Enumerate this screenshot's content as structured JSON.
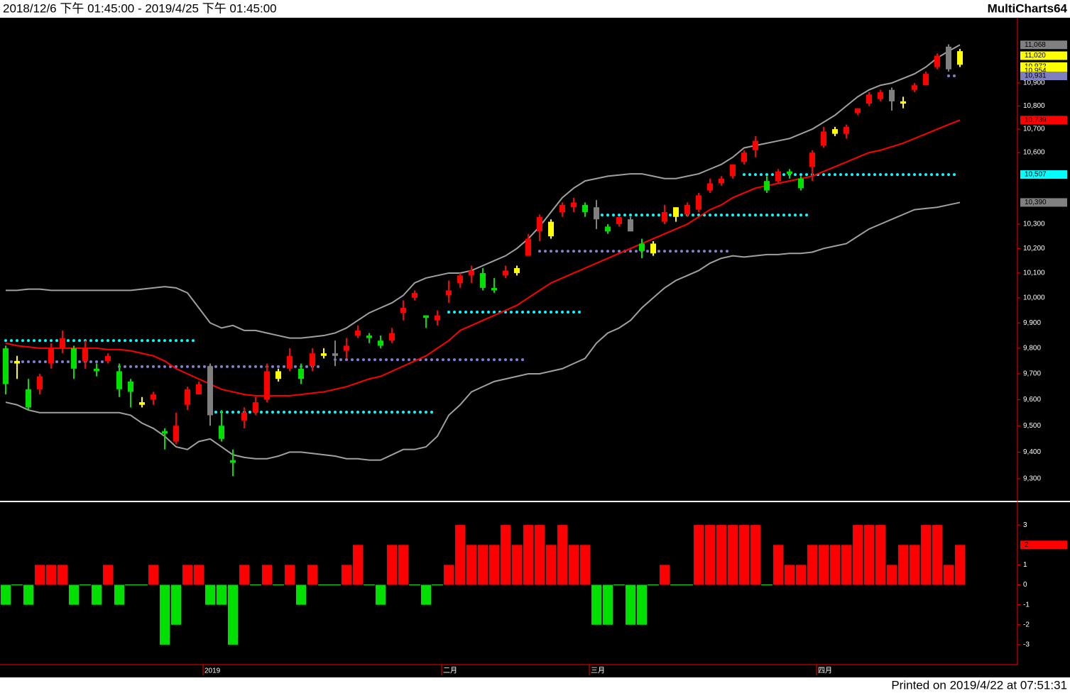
{
  "header": {
    "range": "2018/12/6 下午 01:45:00 - 2019/4/25 下午 01:45:00",
    "app": "MultiCharts64"
  },
  "footer": "Printed on 2019/4/22 at 07:51:31",
  "chart_data": [
    {
      "type": "candlestick",
      "log": true,
      "ylim": [
        9221,
        11189
      ],
      "yticks": [
        {
          "value": 9300,
          "label": "9,300"
        },
        {
          "value": 9400,
          "label": "9,400"
        },
        {
          "value": 9500,
          "label": "9,500"
        },
        {
          "value": 9600,
          "label": "9,600"
        },
        {
          "value": 9700,
          "label": "9,700"
        },
        {
          "value": 9800,
          "label": "9,800"
        },
        {
          "value": 9900,
          "label": "9,900"
        },
        {
          "value": 10000,
          "label": "10,000"
        },
        {
          "value": 10100,
          "label": "10,100"
        },
        {
          "value": 10200,
          "label": "10,200"
        },
        {
          "value": 10300,
          "label": "10,300"
        },
        {
          "value": 10600,
          "label": "10,600"
        },
        {
          "value": 10700,
          "label": "10,700"
        },
        {
          "value": 10800,
          "label": "10,800"
        },
        {
          "value": 10900,
          "label": "10,900"
        }
      ],
      "open": [
        9800,
        9740,
        9640,
        9640,
        9740,
        9800,
        9800,
        9750,
        9720,
        9750,
        9710,
        9670,
        9580,
        9600,
        9480,
        9440,
        9580,
        9620,
        9730,
        9500,
        9370,
        9520,
        9550,
        9600,
        9680,
        9720,
        9720,
        9730,
        9770,
        9780,
        9790,
        9850,
        9850,
        9830,
        9830,
        9940,
        10000,
        9930,
        9910,
        10010,
        10060,
        10090,
        10100,
        10040,
        10090,
        10100,
        10170,
        10270,
        10250,
        10350,
        10370,
        10380,
        10370,
        10290,
        10300,
        10320,
        10220,
        10180,
        10310,
        10330,
        10340,
        10360,
        10440,
        10470,
        10500,
        10560,
        10610,
        10480,
        10480,
        10520,
        10490,
        10540,
        10630,
        10680,
        10680,
        10770,
        10810,
        10830,
        10870,
        10810,
        10870,
        10890,
        10970,
        11060,
        10980
      ],
      "high": [
        9810,
        9770,
        9680,
        9700,
        9820,
        9870,
        9810,
        9830,
        9740,
        9780,
        9740,
        9680,
        9610,
        9630,
        9490,
        9550,
        9650,
        9670,
        9740,
        9560,
        9410,
        9570,
        9610,
        9740,
        9720,
        9800,
        9740,
        9800,
        9800,
        9830,
        9840,
        9890,
        9860,
        9850,
        9880,
        9990,
        10030,
        9930,
        9950,
        10070,
        10100,
        10130,
        10120,
        10080,
        10130,
        10130,
        10260,
        10340,
        10320,
        10390,
        10410,
        10390,
        10400,
        10300,
        10330,
        10330,
        10240,
        10230,
        10380,
        10370,
        10390,
        10430,
        10490,
        10500,
        10550,
        10610,
        10670,
        10500,
        10530,
        10530,
        10500,
        10610,
        10710,
        10710,
        10720,
        10790,
        10860,
        10870,
        10880,
        10840,
        10900,
        10950,
        11030,
        11070,
        11050
      ],
      "low": [
        9620,
        9680,
        9560,
        9620,
        9720,
        9780,
        9680,
        9720,
        9690,
        9740,
        9610,
        9570,
        9570,
        9580,
        9410,
        9430,
        9560,
        9620,
        9500,
        9440,
        9310,
        9490,
        9540,
        9590,
        9670,
        9710,
        9660,
        9710,
        9760,
        9730,
        9760,
        9840,
        9820,
        9800,
        9820,
        9910,
        9990,
        9880,
        9890,
        9980,
        10040,
        10060,
        10030,
        10020,
        10080,
        10090,
        10170,
        10230,
        10240,
        10330,
        10350,
        10330,
        10280,
        10260,
        10290,
        10270,
        10160,
        10170,
        10300,
        10310,
        10330,
        10350,
        10430,
        10460,
        10490,
        10550,
        10580,
        10430,
        10470,
        10490,
        10440,
        10480,
        10620,
        10670,
        10660,
        10760,
        10800,
        10820,
        10780,
        10790,
        10860,
        10890,
        10960,
        10950,
        10970
      ],
      "close": [
        9660,
        9750,
        9570,
        9690,
        9800,
        9840,
        9720,
        9800,
        9710,
        9770,
        9640,
        9630,
        9590,
        9620,
        9470,
        9500,
        9640,
        9660,
        9540,
        9450,
        9360,
        9550,
        9590,
        9710,
        9710,
        9770,
        9680,
        9780,
        9780,
        9770,
        9810,
        9870,
        9840,
        9810,
        9860,
        9960,
        10020,
        9920,
        9930,
        10030,
        10090,
        10110,
        10040,
        10030,
        10110,
        10120,
        10240,
        10330,
        10310,
        10380,
        10390,
        10350,
        10320,
        10270,
        10330,
        10270,
        10190,
        10220,
        10350,
        10370,
        10380,
        10420,
        10470,
        10490,
        10550,
        10600,
        10650,
        10440,
        10520,
        10510,
        10450,
        10600,
        10690,
        10700,
        10710,
        10790,
        10850,
        10860,
        10820,
        10820,
        10890,
        10940,
        11020,
        10960,
        11040
      ],
      "candle_colors": [
        "#00e000",
        "#ffff00",
        "#00e000",
        "#ff0000",
        "#ff0000",
        "#ff0000",
        "#00e000",
        "#ff0000",
        "#00e000",
        "#ff0000",
        "#00e000",
        "#00e000",
        "#ffff00",
        "#ff0000",
        "#00e000",
        "#ff0000",
        "#ff0000",
        "#ff0000",
        "#808080",
        "#00e000",
        "#00e000",
        "#ff0000",
        "#ff0000",
        "#ff0000",
        "#ffff00",
        "#ff0000",
        "#00e000",
        "#ff0000",
        "#ffff00",
        "#808080",
        "#ff0000",
        "#ff0000",
        "#00e000",
        "#00e000",
        "#ff0000",
        "#ff0000",
        "#ff0000",
        "#00e000",
        "#ff0000",
        "#ff0000",
        "#ff0000",
        "#ff0000",
        "#00e000",
        "#00e000",
        "#ff0000",
        "#ffff00",
        "#ff0000",
        "#ff0000",
        "#ffff00",
        "#ff0000",
        "#ff0000",
        "#00e000",
        "#808080",
        "#00e000",
        "#ff0000",
        "#808080",
        "#00e000",
        "#ffff00",
        "#ff0000",
        "#ffff00",
        "#ff0000",
        "#ff0000",
        "#ff0000",
        "#ff0000",
        "#ff0000",
        "#ff0000",
        "#ff0000",
        "#00e000",
        "#ff0000",
        "#00e000",
        "#00e000",
        "#ff0000",
        "#ff0000",
        "#ffff00",
        "#ff0000",
        "#ff0000",
        "#ff0000",
        "#ff0000",
        "#808080",
        "#ffff00",
        "#ff0000",
        "#ff0000",
        "#ff0000",
        "#808080",
        "#ffff00"
      ],
      "bands": [
        {
          "color": "#a0a0a0",
          "values": [
            10030,
            10030,
            10035,
            10035,
            10030,
            10030,
            10030,
            10030,
            10030,
            10030,
            10030,
            10030,
            10035,
            10040,
            10045,
            10040,
            10020,
            9960,
            9900,
            9880,
            9890,
            9870,
            9870,
            9860,
            9850,
            9840,
            9840,
            9845,
            9850,
            9860,
            9880,
            9910,
            9940,
            9960,
            9980,
            10010,
            10060,
            10080,
            10090,
            10100,
            10100,
            10110,
            10130,
            10150,
            10170,
            10200,
            10240,
            10290,
            10350,
            10410,
            10450,
            10480,
            10490,
            10500,
            10505,
            10510,
            10510,
            10500,
            10490,
            10490,
            10500,
            10510,
            10530,
            10550,
            10580,
            10620,
            10630,
            10640,
            10650,
            10660,
            10680,
            10700,
            10730,
            10760,
            10800,
            10840,
            10870,
            10890,
            10900,
            10920,
            10940,
            10970,
            11010,
            11040,
            11068
          ]
        },
        {
          "color": "#ff0000",
          "values": [
            9820,
            9810,
            9805,
            9800,
            9800,
            9800,
            9800,
            9800,
            9800,
            9795,
            9795,
            9790,
            9780,
            9770,
            9750,
            9720,
            9700,
            9680,
            9660,
            9640,
            9630,
            9620,
            9615,
            9615,
            9615,
            9615,
            9620,
            9625,
            9630,
            9640,
            9650,
            9665,
            9680,
            9690,
            9710,
            9730,
            9750,
            9770,
            9800,
            9830,
            9870,
            9890,
            9910,
            9930,
            9950,
            9970,
            10000,
            10030,
            10060,
            10080,
            10100,
            10120,
            10140,
            10160,
            10180,
            10200,
            10220,
            10240,
            10260,
            10280,
            10300,
            10330,
            10360,
            10380,
            10410,
            10430,
            10450,
            10460,
            10470,
            10480,
            10490,
            10500,
            10520,
            10540,
            10560,
            10580,
            10600,
            10610,
            10625,
            10640,
            10660,
            10680,
            10700,
            10720,
            10739
          ]
        },
        {
          "color": "#a0a0a0",
          "values": [
            9590,
            9580,
            9560,
            9550,
            9550,
            9550,
            9550,
            9550,
            9550,
            9550,
            9550,
            9540,
            9510,
            9490,
            9460,
            9420,
            9410,
            9440,
            9450,
            9420,
            9390,
            9380,
            9375,
            9375,
            9385,
            9400,
            9400,
            9395,
            9390,
            9385,
            9375,
            9375,
            9370,
            9370,
            9390,
            9410,
            9410,
            9420,
            9460,
            9540,
            9580,
            9630,
            9650,
            9670,
            9680,
            9690,
            9700,
            9700,
            9710,
            9720,
            9740,
            9760,
            9820,
            9860,
            9880,
            9910,
            9960,
            10000,
            10040,
            10070,
            10090,
            10110,
            10140,
            10160,
            10170,
            10165,
            10170,
            10175,
            10175,
            10180,
            10180,
            10185,
            10200,
            10210,
            10220,
            10250,
            10280,
            10300,
            10320,
            10340,
            10360,
            10365,
            10370,
            10380,
            10390
          ]
        }
      ],
      "levels": [
        {
          "value": 9830,
          "start": 0,
          "end": 17,
          "color": "#00ffff"
        },
        {
          "value": 9747,
          "start": 0,
          "end": 9,
          "color": "#8080d0"
        },
        {
          "value": 9728,
          "start": 10,
          "end": 28,
          "color": "#8080d0"
        },
        {
          "value": 9755,
          "start": 29,
          "end": 46,
          "color": "#8080d0"
        },
        {
          "value": 9552,
          "start": 18,
          "end": 38,
          "color": "#00ffff"
        },
        {
          "value": 9943,
          "start": 39,
          "end": 51,
          "color": "#00ffff"
        },
        {
          "value": 10189,
          "start": 47,
          "end": 64,
          "color": "#8080d0"
        },
        {
          "value": 10338,
          "start": 52,
          "end": 71,
          "color": "#00ffff"
        },
        {
          "value": 10507,
          "start": 65,
          "end": 84,
          "color": "#00ffff"
        },
        {
          "value": 10931,
          "start": 83,
          "end": 84,
          "color": "#8080d0"
        }
      ],
      "markers": [
        {
          "value": 11068,
          "label": "11,068",
          "color": "#808080"
        },
        {
          "value": 11020,
          "label": "11,020",
          "color": "#ffff00"
        },
        {
          "value": 10972,
          "label": "10,972",
          "color": "#ffff00"
        },
        {
          "value": 10954,
          "label": "10,954",
          "color": "#ffff00"
        },
        {
          "value": 10931,
          "label": "10,931",
          "color": "#8080c0"
        },
        {
          "value": 10739,
          "label": "10,739",
          "color": "#ff0000"
        },
        {
          "value": 10507,
          "label": "10,507",
          "color": "#00ffff"
        },
        {
          "value": 10390,
          "label": "10,390",
          "color": "#808080"
        }
      ]
    },
    {
      "type": "bar",
      "ylim": [
        -4,
        4
      ],
      "yticks": [
        -3,
        -2,
        -1,
        0,
        1,
        3
      ],
      "pos_color": "#ff0000",
      "neg_color": "#00e000",
      "categories": [
        null,
        null,
        null,
        null,
        null,
        null,
        null,
        null,
        null,
        null,
        null,
        null,
        null,
        null,
        null,
        null,
        null,
        null,
        "2019",
        null,
        null,
        null,
        null,
        null,
        null,
        null,
        null,
        null,
        null,
        null,
        null,
        null,
        null,
        null,
        null,
        null,
        null,
        null,
        null,
        "二月",
        null,
        null,
        null,
        null,
        null,
        null,
        null,
        null,
        null,
        null,
        null,
        null,
        "三月",
        null,
        null,
        null,
        null,
        null,
        null,
        null,
        null,
        null,
        null,
        null,
        null,
        null,
        null,
        null,
        null,
        null,
        null,
        null,
        "四月",
        null,
        null,
        null,
        null,
        null,
        null,
        null,
        null,
        null,
        null,
        null,
        null
      ],
      "values": [
        -1,
        0,
        -1,
        1,
        1,
        1,
        -1,
        0,
        -1,
        1,
        -1,
        0,
        0,
        1,
        -3,
        -2,
        1,
        1,
        -1,
        -1,
        -3,
        1,
        0,
        1,
        0,
        1,
        -1,
        1,
        0,
        0,
        1,
        2,
        0,
        -1,
        2,
        2,
        0,
        -1,
        0,
        1,
        3,
        2,
        2,
        2,
        3,
        2,
        3,
        3,
        2,
        3,
        2,
        2,
        -2,
        -2,
        0,
        -2,
        -2,
        0,
        1,
        0,
        0,
        3,
        3,
        3,
        3,
        3,
        3,
        0,
        2,
        1,
        1,
        2,
        2,
        2,
        2,
        3,
        3,
        3,
        1,
        2,
        2,
        3,
        3,
        1,
        2
      ],
      "markers": [
        {
          "value": 2,
          "label": "2",
          "color": "#ff0000"
        }
      ]
    }
  ]
}
